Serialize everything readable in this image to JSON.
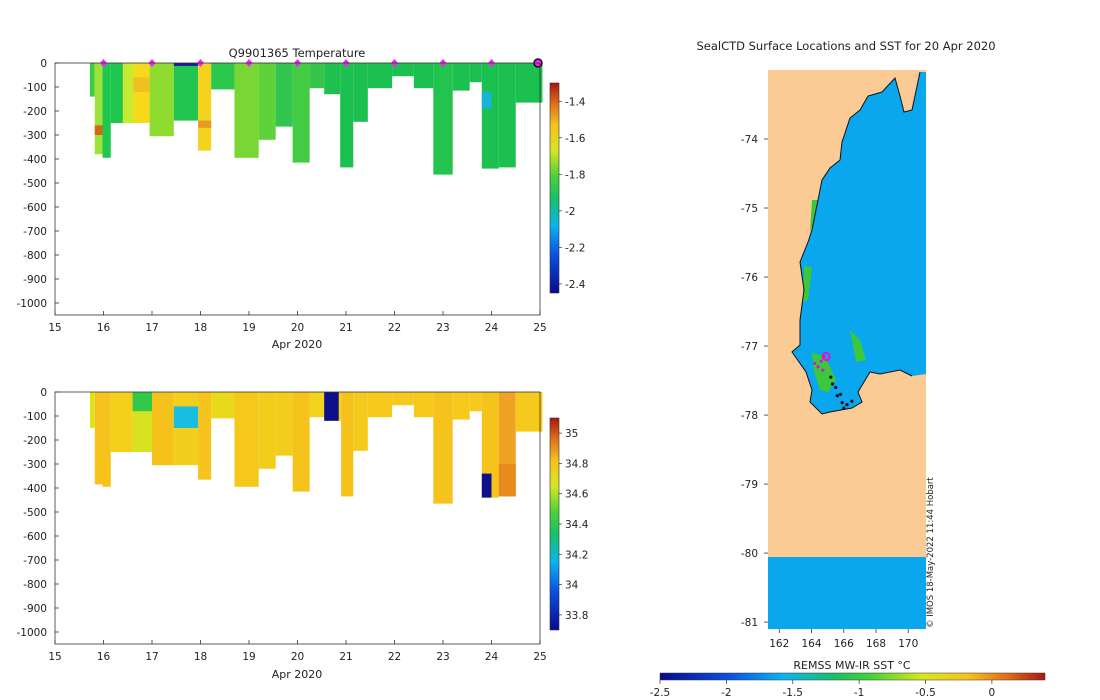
{
  "chart_data": [
    {
      "type": "heatmap",
      "title": "Q9901365  Temperature",
      "xlabel": "Apr 2020",
      "x_ticks": [
        "15",
        "16",
        "17",
        "18",
        "19",
        "20",
        "21",
        "22",
        "23",
        "24",
        "25"
      ],
      "xlim": [
        15,
        25
      ],
      "y_ticks": [
        "0",
        "-100",
        "-200",
        "-300",
        "-400",
        "-500",
        "-600",
        "-700",
        "-800",
        "-900",
        "-1000"
      ],
      "ylim": [
        -1050,
        0
      ],
      "colorbar": {
        "ticks": [
          "-1.4",
          "-1.6",
          "-1.8",
          "-2",
          "-2.2",
          "-2.4"
        ],
        "range": [
          -2.45,
          -1.3
        ]
      },
      "markers_days": [
        16,
        17,
        18,
        19,
        20,
        21,
        22,
        23,
        24
      ],
      "highlight_day": 25,
      "profiles": [
        {
          "t0": 15.72,
          "t1": 15.82,
          "depth": 140,
          "color": "#3ccc3c"
        },
        {
          "t0": 15.82,
          "t1": 15.98,
          "depth": 380,
          "color": "#9be23a"
        },
        {
          "t0": 15.98,
          "t1": 16.15,
          "depth": 395,
          "color": "#1ec84e"
        },
        {
          "t0": 16.15,
          "t1": 16.4,
          "depth": 250,
          "color": "#1fc64e"
        },
        {
          "t0": 16.4,
          "t1": 16.62,
          "depth": 250,
          "color": "#c8ea2f"
        },
        {
          "t0": 16.62,
          "t1": 16.95,
          "depth": 250,
          "color": "#f5d91a"
        },
        {
          "t0": 16.95,
          "t1": 17.45,
          "depth": 305,
          "color": "#8fdc30"
        },
        {
          "t0": 17.45,
          "t1": 17.95,
          "depth": 240,
          "color": "#22c54f"
        },
        {
          "t0": 17.95,
          "t1": 18.22,
          "depth": 365,
          "color": "#f2d21d"
        },
        {
          "t0": 18.22,
          "t1": 18.7,
          "depth": 110,
          "color": "#2bc84e"
        },
        {
          "t0": 18.7,
          "t1": 19.2,
          "depth": 395,
          "color": "#78d734"
        },
        {
          "t0": 19.2,
          "t1": 19.55,
          "depth": 320,
          "color": "#5fd13a"
        },
        {
          "t0": 19.55,
          "t1": 19.9,
          "depth": 265,
          "color": "#2fc54e"
        },
        {
          "t0": 19.9,
          "t1": 20.25,
          "depth": 415,
          "color": "#44cb44"
        },
        {
          "t0": 20.25,
          "t1": 20.55,
          "depth": 105,
          "color": "#35c54a"
        },
        {
          "t0": 20.55,
          "t1": 20.88,
          "depth": 130,
          "color": "#20c050"
        },
        {
          "t0": 20.88,
          "t1": 21.15,
          "depth": 435,
          "color": "#1bc051"
        },
        {
          "t0": 21.15,
          "t1": 21.45,
          "depth": 245,
          "color": "#1bc051"
        },
        {
          "t0": 21.45,
          "t1": 21.95,
          "depth": 105,
          "color": "#1bc051"
        },
        {
          "t0": 21.95,
          "t1": 22.4,
          "depth": 55,
          "color": "#1bc051"
        },
        {
          "t0": 22.4,
          "t1": 22.8,
          "depth": 105,
          "color": "#1bc051"
        },
        {
          "t0": 22.8,
          "t1": 23.2,
          "depth": 465,
          "color": "#22c44e"
        },
        {
          "t0": 23.2,
          "t1": 23.55,
          "depth": 115,
          "color": "#1bc051"
        },
        {
          "t0": 23.55,
          "t1": 23.8,
          "depth": 80,
          "color": "#1bc051"
        },
        {
          "t0": 23.8,
          "t1": 24.15,
          "depth": 440,
          "color": "#1bc051"
        },
        {
          "t0": 24.15,
          "t1": 24.5,
          "depth": 435,
          "color": "#1bc051"
        },
        {
          "t0": 24.5,
          "t1": 25.05,
          "depth": 165,
          "color": "#1bc051"
        }
      ],
      "patches": [
        {
          "t0": 15.82,
          "t1": 15.98,
          "d0": 260,
          "d1": 300,
          "color": "#d06a1a"
        },
        {
          "t0": 17.45,
          "t1": 17.95,
          "d0": 0,
          "d1": 12,
          "color": "#1a1a9a"
        },
        {
          "t0": 16.62,
          "t1": 16.95,
          "d0": 60,
          "d1": 120,
          "color": "#f0c020"
        },
        {
          "t0": 17.95,
          "t1": 18.22,
          "d0": 240,
          "d1": 270,
          "color": "#e89b22"
        },
        {
          "t0": 23.8,
          "t1": 24.0,
          "d0": 120,
          "d1": 190,
          "color": "#18b4d8"
        }
      ]
    },
    {
      "type": "heatmap",
      "title": "",
      "xlabel": "Apr 2020",
      "x_ticks": [
        "15",
        "16",
        "17",
        "18",
        "19",
        "20",
        "21",
        "22",
        "23",
        "24",
        "25"
      ],
      "xlim": [
        15,
        25
      ],
      "y_ticks": [
        "0",
        "-100",
        "-200",
        "-300",
        "-400",
        "-500",
        "-600",
        "-700",
        "-800",
        "-900",
        "-1000"
      ],
      "ylim": [
        -1050,
        0
      ],
      "colorbar": {
        "ticks": [
          "35",
          "34.8",
          "34.6",
          "34.4",
          "34.2",
          "34",
          "33.8"
        ],
        "range": [
          33.7,
          35.1
        ]
      },
      "profiles": [
        {
          "t0": 15.72,
          "t1": 15.82,
          "depth": 150,
          "color": "#dce41c"
        },
        {
          "t0": 15.82,
          "t1": 15.98,
          "depth": 385,
          "color": "#f7c21c"
        },
        {
          "t0": 15.98,
          "t1": 16.15,
          "depth": 395,
          "color": "#f7c21c"
        },
        {
          "t0": 16.15,
          "t1": 16.6,
          "depth": 250,
          "color": "#f5cf1a"
        },
        {
          "t0": 16.6,
          "t1": 17.0,
          "depth": 250,
          "color": "#d7e320"
        },
        {
          "t0": 17.0,
          "t1": 17.45,
          "depth": 305,
          "color": "#f5c21c"
        },
        {
          "t0": 17.45,
          "t1": 17.95,
          "depth": 305,
          "color": "#f3cf1d"
        },
        {
          "t0": 17.95,
          "t1": 18.22,
          "depth": 365,
          "color": "#f6c41c"
        },
        {
          "t0": 18.22,
          "t1": 18.7,
          "depth": 110,
          "color": "#ead81c"
        },
        {
          "t0": 18.7,
          "t1": 19.2,
          "depth": 395,
          "color": "#f5c81c"
        },
        {
          "t0": 19.2,
          "t1": 19.55,
          "depth": 320,
          "color": "#f3cd1c"
        },
        {
          "t0": 19.55,
          "t1": 19.9,
          "depth": 265,
          "color": "#f3cd1c"
        },
        {
          "t0": 19.9,
          "t1": 20.25,
          "depth": 415,
          "color": "#f6c21c"
        },
        {
          "t0": 20.25,
          "t1": 20.55,
          "depth": 105,
          "color": "#f2d21c"
        },
        {
          "t0": 20.55,
          "t1": 20.9,
          "depth": 120,
          "color": "#f2d21c"
        },
        {
          "t0": 20.9,
          "t1": 21.15,
          "depth": 435,
          "color": "#f5c21c"
        },
        {
          "t0": 21.15,
          "t1": 21.45,
          "depth": 245,
          "color": "#f6ca1c"
        },
        {
          "t0": 21.45,
          "t1": 21.95,
          "depth": 105,
          "color": "#f6ca1c"
        },
        {
          "t0": 21.95,
          "t1": 22.4,
          "depth": 55,
          "color": "#f6ca1c"
        },
        {
          "t0": 22.4,
          "t1": 22.8,
          "depth": 105,
          "color": "#f6ca1c"
        },
        {
          "t0": 22.8,
          "t1": 23.2,
          "depth": 465,
          "color": "#f6c21c"
        },
        {
          "t0": 23.2,
          "t1": 23.55,
          "depth": 115,
          "color": "#f6ca1c"
        },
        {
          "t0": 23.55,
          "t1": 23.8,
          "depth": 80,
          "color": "#f6ca1c"
        },
        {
          "t0": 23.8,
          "t1": 24.15,
          "depth": 440,
          "color": "#f6c21c"
        },
        {
          "t0": 24.15,
          "t1": 24.5,
          "depth": 435,
          "color": "#f0a224"
        },
        {
          "t0": 24.5,
          "t1": 25.05,
          "depth": 165,
          "color": "#f6ca1c"
        }
      ],
      "patches": [
        {
          "t0": 20.55,
          "t1": 20.85,
          "d0": 0,
          "d1": 120,
          "color": "#0f0f8a"
        },
        {
          "t0": 17.45,
          "t1": 17.95,
          "d0": 60,
          "d1": 150,
          "color": "#18bde0"
        },
        {
          "t0": 16.6,
          "t1": 17.0,
          "d0": 0,
          "d1": 80,
          "color": "#32c84a"
        },
        {
          "t0": 23.8,
          "t1": 24.0,
          "d0": 340,
          "d1": 440,
          "color": "#0f0f8a"
        },
        {
          "t0": 24.15,
          "t1": 24.5,
          "d0": 300,
          "d1": 435,
          "color": "#e88a1e"
        }
      ]
    },
    {
      "type": "map",
      "title": "SealCTD Surface Locations and SST for 20 Apr 2020",
      "colorbar_label": "REMSS MW-IR SST °C",
      "colorbar_ticks": [
        "-2.5",
        "-2",
        "-1.5",
        "-1",
        "-0.5",
        "0"
      ],
      "colorbar_range": [
        -2.5,
        0.4
      ],
      "x_ticks": [
        "162",
        "164",
        "166",
        "168",
        "170"
      ],
      "xlim": [
        161.3,
        171.1
      ],
      "y_ticks": [
        "-74",
        "-75",
        "-76",
        "-77",
        "-78",
        "-79",
        "-80",
        "-81"
      ],
      "ylim": [
        -81.1,
        -73.0
      ],
      "credit": "© IMOS 18-May-2022 11:44 Hobart",
      "land_color": "#fbcb96",
      "sea_color": "#0aa6ee",
      "seal_track": [
        [
          164.2,
          -77.25
        ],
        [
          164.4,
          -77.3
        ],
        [
          164.6,
          -77.22
        ],
        [
          164.8,
          -77.15
        ],
        [
          165.0,
          -77.2
        ],
        [
          164.7,
          -77.35
        ],
        [
          165.2,
          -77.45
        ],
        [
          165.5,
          -77.6
        ],
        [
          165.6,
          -77.72
        ],
        [
          165.9,
          -77.82
        ],
        [
          166.2,
          -77.85
        ],
        [
          166.5,
          -77.8
        ],
        [
          166.0,
          -77.9
        ],
        [
          165.8,
          -77.7
        ],
        [
          165.3,
          -77.55
        ]
      ],
      "seal_latest": [
        164.9,
        -77.15
      ]
    }
  ]
}
